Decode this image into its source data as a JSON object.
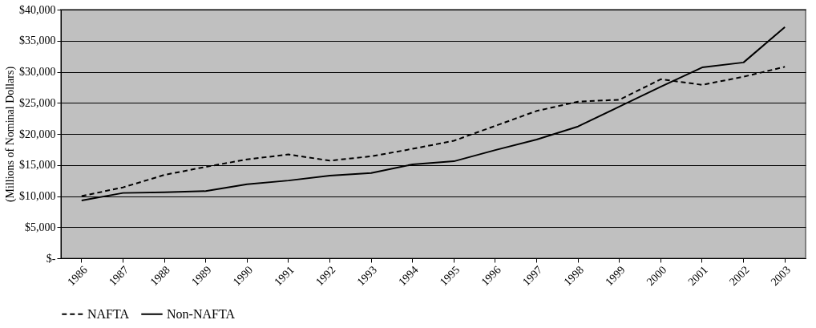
{
  "chart_data": {
    "type": "line",
    "ylabel": "(Millions of Nominal Dollars)",
    "categories": [
      "1986",
      "1987",
      "1988",
      "1989",
      "1990",
      "1991",
      "1992",
      "1993",
      "1994",
      "1995",
      "1996",
      "1997",
      "1998",
      "1999",
      "2000",
      "2001",
      "2002",
      "2003"
    ],
    "series": [
      {
        "name": "NAFTA",
        "color": "#000000",
        "line_style": "dashed",
        "values": [
          10000,
          11400,
          13400,
          14700,
          15900,
          16700,
          15700,
          16400,
          17600,
          18900,
          21300,
          23700,
          25200,
          25500,
          28800,
          27900,
          29200,
          30800
        ]
      },
      {
        "name": "Non-NAFTA",
        "color": "#000000",
        "line_style": "solid",
        "values": [
          9300,
          10500,
          10600,
          10800,
          11900,
          12500,
          13300,
          13700,
          15100,
          15600,
          17400,
          19100,
          21200,
          24400,
          27600,
          30700,
          31500,
          37200
        ]
      }
    ],
    "ylim": [
      0,
      40000
    ],
    "yticks": [
      {
        "value": 0,
        "label": "$-"
      },
      {
        "value": 5000,
        "label": "$5,000"
      },
      {
        "value": 10000,
        "label": "$10,000"
      },
      {
        "value": 15000,
        "label": "$15,000"
      },
      {
        "value": 20000,
        "label": "$20,000"
      },
      {
        "value": 25000,
        "label": "$25,000"
      },
      {
        "value": 30000,
        "label": "$30,000"
      },
      {
        "value": 35000,
        "label": "$35,000"
      },
      {
        "value": 40000,
        "label": "$40,000"
      }
    ],
    "grid": "y",
    "legend": "bottom",
    "marker": "none"
  }
}
